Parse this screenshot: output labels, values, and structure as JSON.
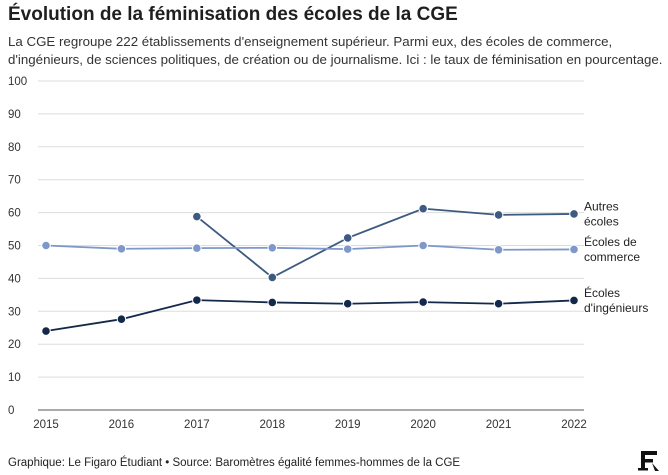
{
  "title": "Évolution de la féminisation des écoles de la CGE",
  "subtitle": "La CGE regroupe 222 établissements d'enseignement supérieur. Parmi eux, des écoles de commerce, d'ingénieurs, de sciences politiques, de création ou de journalisme. Ici : le taux de féminisation en pourcentage.",
  "footer": "Graphique: Le Figaro Étudiant • Source: Baromètres égalité femmes-hommes de la CGE",
  "logo_text": "F",
  "colors": {
    "autres": "#3d5a80",
    "commerce": "#7f98c9",
    "ingenieurs": "#13294b",
    "grid": "#dddddd",
    "axis": "#555555"
  },
  "chart_data": {
    "type": "line",
    "x": [
      2015,
      2016,
      2017,
      2018,
      2019,
      2020,
      2021,
      2022
    ],
    "ylim": [
      0,
      100
    ],
    "yticks": [
      0,
      10,
      20,
      30,
      40,
      50,
      60,
      70,
      80,
      90,
      100
    ],
    "grid": true,
    "series": [
      {
        "name": "Autres écoles",
        "label_lines": [
          "Autres",
          "écoles"
        ],
        "color_key": "autres",
        "values": [
          null,
          null,
          58.8,
          40.3,
          52.3,
          61.2,
          59.3,
          59.6
        ]
      },
      {
        "name": "Écoles de commerce",
        "label_lines": [
          "Écoles de",
          "commerce"
        ],
        "color_key": "commerce",
        "values": [
          50.0,
          49.0,
          49.2,
          49.3,
          48.9,
          50.0,
          48.7,
          48.8
        ]
      },
      {
        "name": "Écoles d'ingénieurs",
        "label_lines": [
          "Écoles",
          "d'ingénieurs"
        ],
        "color_key": "ingenieurs",
        "values": [
          24.0,
          27.6,
          33.4,
          32.7,
          32.3,
          32.8,
          32.3,
          33.3
        ]
      }
    ]
  }
}
